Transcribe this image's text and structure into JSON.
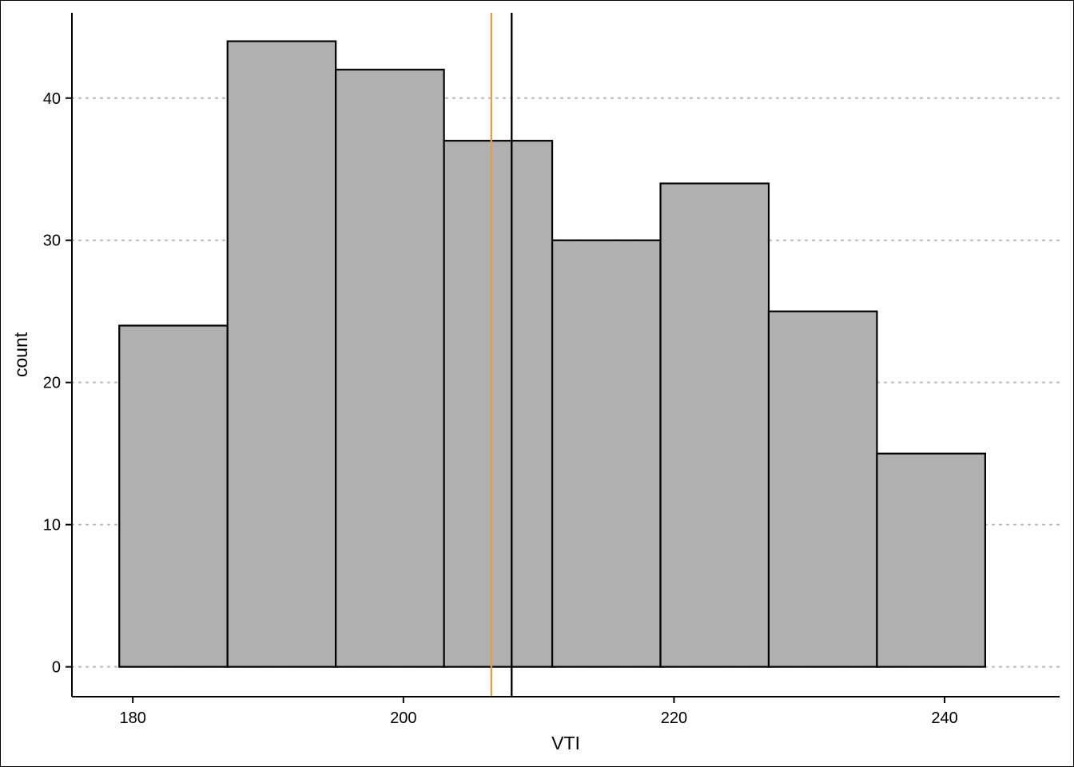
{
  "chart_data": {
    "type": "histogram",
    "title": "",
    "xlabel": "VTI",
    "ylabel": "count",
    "xlim": [
      175.5,
      248.5
    ],
    "ylim": [
      -2.1,
      46
    ],
    "x_ticks": [
      180,
      200,
      220,
      240
    ],
    "y_ticks": [
      0,
      10,
      20,
      30,
      40
    ],
    "bin_width": 8,
    "bins": [
      {
        "x0": 179,
        "x1": 187,
        "count": 24
      },
      {
        "x0": 187,
        "x1": 195,
        "count": 44
      },
      {
        "x0": 195,
        "x1": 203,
        "count": 42
      },
      {
        "x0": 203,
        "x1": 211,
        "count": 37
      },
      {
        "x0": 211,
        "x1": 219,
        "count": 30
      },
      {
        "x0": 219,
        "x1": 227,
        "count": 34
      },
      {
        "x0": 227,
        "x1": 235,
        "count": 25
      },
      {
        "x0": 235,
        "x1": 243,
        "count": 15
      }
    ],
    "vertical_lines": [
      {
        "x": 206.5,
        "color": "#E69F3A"
      },
      {
        "x": 208.0,
        "color": "#000000"
      }
    ],
    "grid": {
      "horizontal": true,
      "vertical": false,
      "style": "dotted"
    },
    "bar_fill": "#B0B0B0",
    "bar_stroke": "#000000"
  }
}
